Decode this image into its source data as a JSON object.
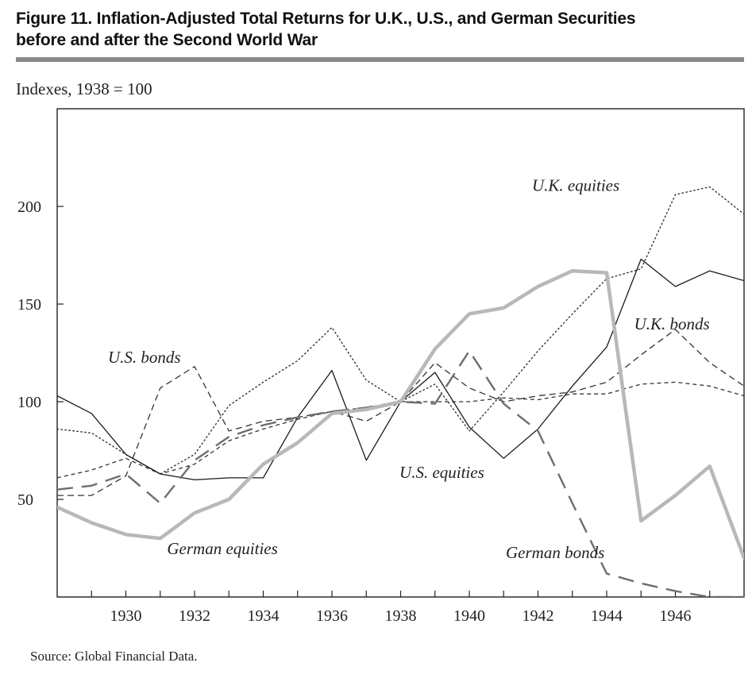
{
  "figure": {
    "title_line1": "Figure 11.  Inflation-Adjusted Total Returns for U.K., U.S., and German Securities",
    "title_line2": "before and after the Second World War",
    "subtitle": "Indexes, 1938 = 100",
    "source": "Source: Global Financial Data."
  },
  "chart_data": {
    "type": "line",
    "title": "Inflation-Adjusted Total Returns for U.K., U.S., and German Securities before and after the Second World War",
    "ylabel": "Indexes, 1938 = 100",
    "xlabel": "",
    "xlim": [
      1928,
      1948
    ],
    "ylim": [
      0,
      250
    ],
    "x_ticks": [
      1930,
      1932,
      1934,
      1936,
      1938,
      1940,
      1942,
      1944,
      1946
    ],
    "y_ticks": [
      50,
      100,
      150,
      200
    ],
    "x": [
      1928,
      1929,
      1930,
      1931,
      1932,
      1933,
      1934,
      1935,
      1936,
      1937,
      1938,
      1939,
      1940,
      1941,
      1942,
      1943,
      1944,
      1945,
      1946,
      1947,
      1948
    ],
    "series": [
      {
        "name": "U.K. equities",
        "style": "dotted",
        "values": [
          86,
          84,
          73,
          63,
          73,
          98,
          110,
          121,
          138,
          111,
          100,
          109,
          85,
          105,
          126,
          145,
          163,
          168,
          206,
          210,
          196
        ]
      },
      {
        "name": "U.S. equities",
        "style": "solid",
        "values": [
          103,
          94,
          73,
          63,
          60,
          61,
          61,
          92,
          116,
          70,
          100,
          115,
          87,
          71,
          86,
          108,
          128,
          173,
          159,
          167,
          162
        ]
      },
      {
        "name": "U.S. bonds",
        "style": "dashed-short",
        "values": [
          52,
          52,
          62,
          107,
          118,
          85,
          90,
          92,
          95,
          90,
          100,
          120,
          107,
          100,
          103,
          105,
          110,
          124,
          137,
          120,
          108
        ]
      },
      {
        "name": "U.K. bonds",
        "style": "dashed-fine",
        "values": [
          61,
          65,
          71,
          63,
          68,
          80,
          86,
          91,
          95,
          97,
          100,
          100,
          100,
          102,
          101,
          104,
          104,
          109,
          110,
          108,
          103
        ]
      },
      {
        "name": "German bonds",
        "style": "dashed-long",
        "values": [
          55,
          57,
          63,
          48,
          70,
          82,
          88,
          92,
          95,
          97,
          100,
          99,
          126,
          99,
          85,
          48,
          12,
          7,
          3,
          0,
          0
        ]
      },
      {
        "name": "German equities",
        "style": "solid-thick",
        "values": [
          46,
          38,
          32,
          30,
          43,
          50,
          68,
          79,
          94,
          96,
          100,
          127,
          145,
          148,
          159,
          167,
          166,
          39,
          52,
          67,
          20
        ]
      }
    ],
    "annotations": [
      {
        "text": "U.K. equities",
        "series": "U.K. equities"
      },
      {
        "text": "U.S. bonds",
        "series": "U.S. bonds"
      },
      {
        "text": "U.K. bonds",
        "series": "U.K. bonds"
      },
      {
        "text": "U.S. equities",
        "series": "U.S. equities"
      },
      {
        "text": "German equities",
        "series": "German equities"
      },
      {
        "text": "German bonds",
        "series": "German bonds"
      }
    ],
    "colors": {
      "axis": "#222222",
      "U.K. equities": "#333333",
      "U.S. equities": "#1a1a1a",
      "U.S. bonds": "#333333",
      "U.K. bonds": "#333333",
      "German bonds": "#6e6e6e",
      "German equities": "#b8b8b8"
    }
  }
}
